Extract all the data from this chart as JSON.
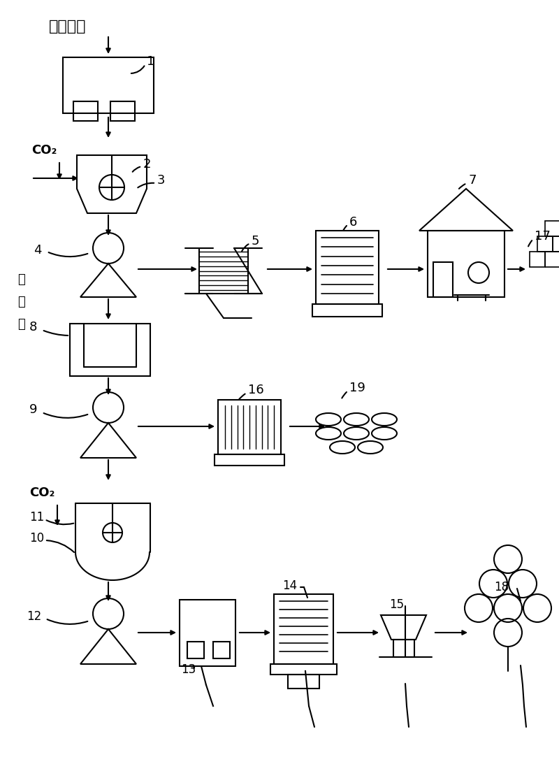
{
  "bg_color": "#ffffff",
  "line_color": "#000000",
  "figsize": [
    8.0,
    10.93
  ],
  "dpi": 100,
  "top_label": "氯硏盐泥",
  "ammonium_chloride_text": [
    "氯",
    "化",
    "锨"
  ]
}
